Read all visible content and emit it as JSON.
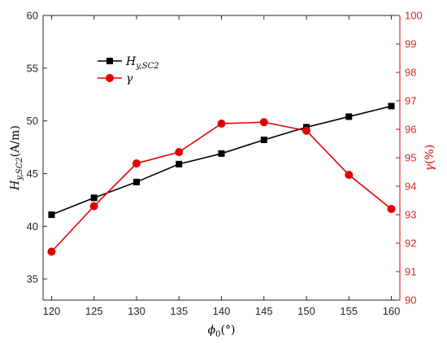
{
  "chart_data": {
    "type": "line",
    "x": [
      120,
      125,
      130,
      135,
      140,
      145,
      150,
      155,
      160
    ],
    "xlabel": "ϕ0(°)",
    "xlim": [
      119,
      161
    ],
    "xticks": [
      120,
      125,
      130,
      135,
      140,
      145,
      150,
      155,
      160
    ],
    "y_left": {
      "label": "Hy,SC2(A/m)",
      "lim": [
        33,
        60
      ],
      "ticks": [
        35,
        40,
        45,
        50,
        55,
        60
      ],
      "color": "#000000"
    },
    "y_right": {
      "label": "γ(%)",
      "lim": [
        90,
        100
      ],
      "ticks": [
        90,
        91,
        92,
        93,
        94,
        95,
        96,
        97,
        98,
        99,
        100
      ],
      "color": "#e00000"
    },
    "series": [
      {
        "name": "Hy,SC2",
        "axis": "left",
        "marker": "square",
        "color": "#000000",
        "values": [
          41.1,
          42.7,
          44.2,
          45.9,
          46.9,
          48.2,
          49.4,
          50.4,
          51.4
        ]
      },
      {
        "name": "γ",
        "axis": "right",
        "marker": "circle",
        "color": "#e00000",
        "values": [
          91.7,
          93.3,
          94.8,
          95.2,
          96.2,
          96.25,
          95.95,
          94.4,
          93.2
        ]
      }
    ],
    "legend": {
      "placement": "top-left",
      "items": [
        {
          "label": "Hy,SC2",
          "main": "H",
          "sub": "y,SC2",
          "color": "#000000",
          "marker": "square"
        },
        {
          "label": "γ",
          "main": "γ",
          "sub": "",
          "color": "#e00000",
          "marker": "circle"
        }
      ]
    },
    "axis_text": {
      "x": {
        "main": "ϕ",
        "sub": "0",
        "rest": "(°)"
      },
      "y_left": {
        "main": "H",
        "sub": "y,SC2",
        "rest": "(A/m)"
      },
      "y_right": {
        "main": "γ",
        "rest": "(%)"
      }
    },
    "grid": false
  }
}
